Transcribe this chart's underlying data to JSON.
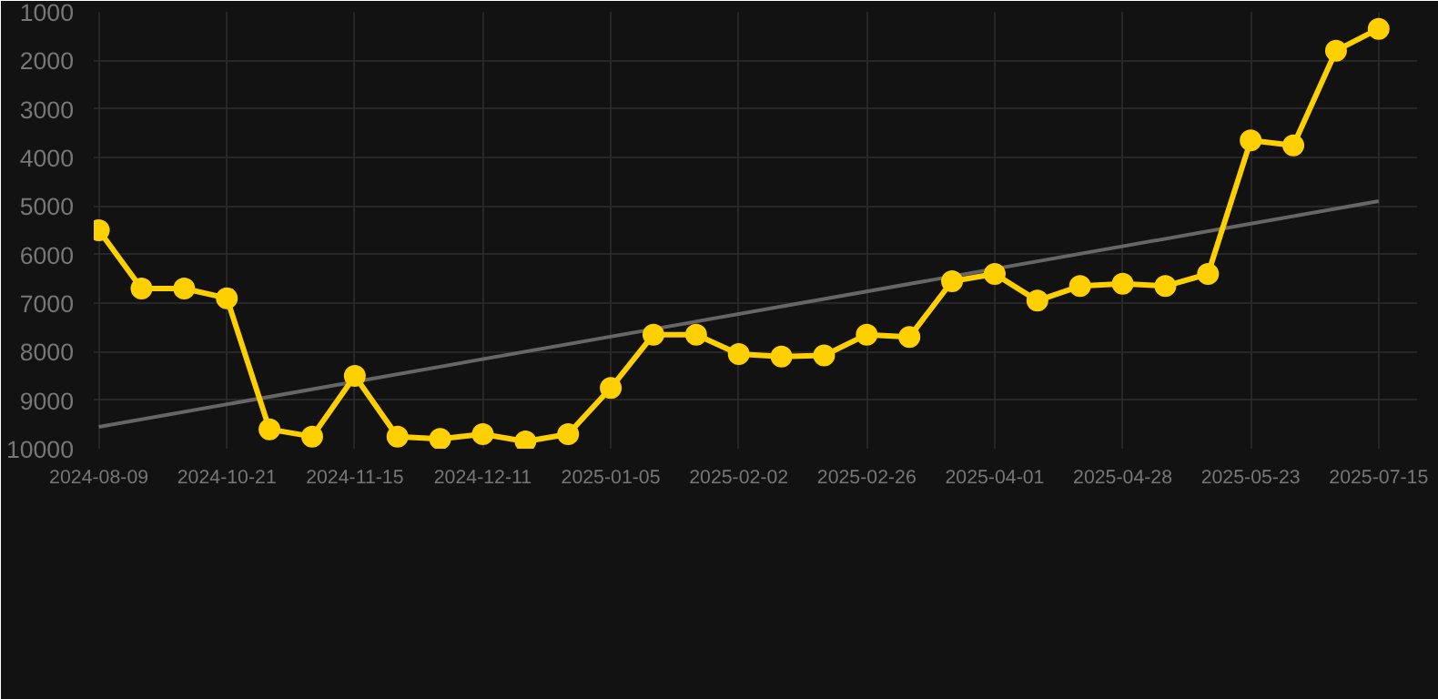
{
  "chart_data": {
    "type": "line",
    "categories": [
      "2024-08-09",
      null,
      null,
      "2024-10-21",
      null,
      null,
      "2024-11-15",
      null,
      null,
      "2024-12-11",
      null,
      null,
      "2025-01-05",
      null,
      null,
      "2025-02-02",
      null,
      null,
      "2025-02-26",
      null,
      null,
      "2025-04-01",
      null,
      null,
      "2025-04-28",
      null,
      null,
      "2025-05-23",
      null,
      null,
      "2025-07-15"
    ],
    "series": [
      {
        "color": "#ffd000",
        "marker": "circle",
        "values": [
          5500,
          6700,
          6700,
          6900,
          9600,
          9750,
          8500,
          9750,
          9800,
          9700,
          9850,
          9700,
          8750,
          7650,
          7650,
          8050,
          8100,
          8080,
          7650,
          7700,
          6550,
          6400,
          6950,
          6650,
          6600,
          6650,
          6400,
          3650,
          3750,
          1800,
          1350
        ]
      },
      {
        "type": "line",
        "color": "#666666",
        "marker": "none",
        "values": [
          9550,
          null,
          null,
          null,
          null,
          null,
          null,
          null,
          null,
          null,
          null,
          null,
          null,
          null,
          null,
          null,
          null,
          null,
          null,
          null,
          null,
          null,
          null,
          null,
          null,
          null,
          null,
          null,
          null,
          null,
          4900
        ]
      }
    ],
    "ylim": [
      10000,
      1000
    ],
    "yticks": [
      1000,
      2000,
      3000,
      4000,
      5000,
      6000,
      7000,
      8000,
      9000,
      10000
    ],
    "grid": true
  }
}
